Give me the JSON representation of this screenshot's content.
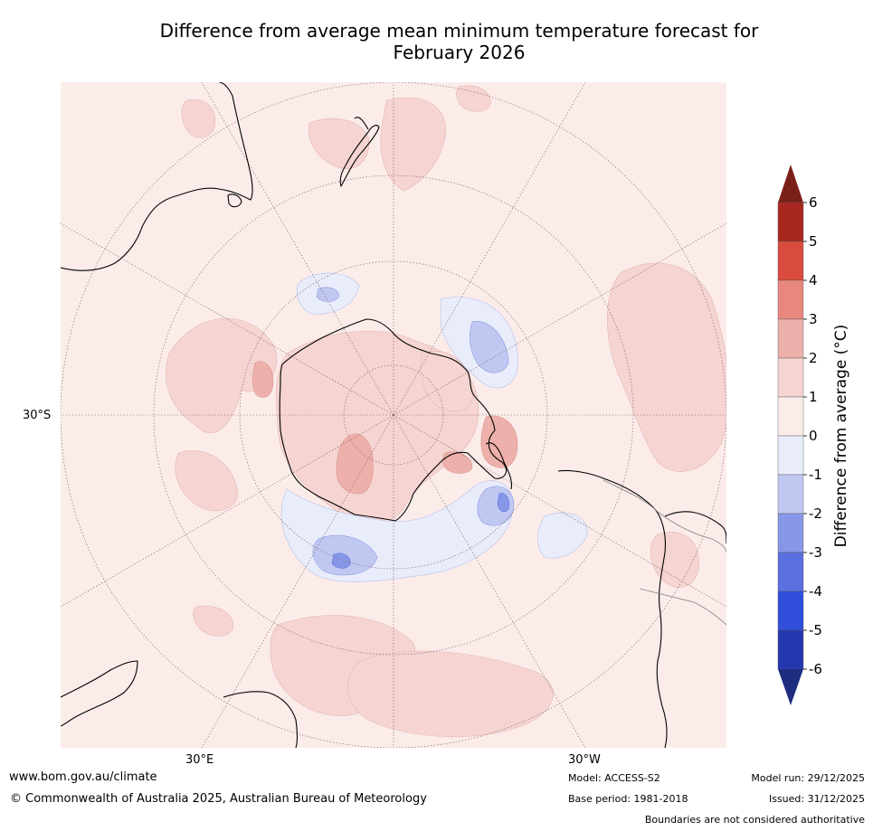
{
  "title": {
    "line1": "Difference from average mean minimum temperature forecast for",
    "line2": "February 2026"
  },
  "map": {
    "lat_label": "30°S",
    "lon_labels": [
      "30°E",
      "30°W"
    ]
  },
  "colorbar": {
    "label": "Difference from average (°C)",
    "ticks": [
      "6",
      "5",
      "4",
      "3",
      "2",
      "1",
      "0",
      "-1",
      "-2",
      "-3",
      "-4",
      "-5",
      "-6"
    ],
    "colors": {
      "above_6": "#7b1f1a",
      "5_6": "#a8281f",
      "4_5": "#d94b3d",
      "3_4": "#e8877d",
      "2_3": "#eeb0aa",
      "1_2": "#f5d4d1",
      "0_1": "#fbecea",
      "m1_0": "#e9ecfa",
      "m2_m1": "#c0c8f2",
      "m3_m2": "#8797e8",
      "m4_m3": "#5a70e0",
      "m5_m4": "#2f4fdc",
      "m6_m5": "#2438b0",
      "below_m6": "#1e2d80"
    }
  },
  "footer": {
    "website": "www.bom.gov.au/climate",
    "copyright": "© Commonwealth of Australia 2025, Australian Bureau of Meteorology",
    "model": "Model: ACCESS-S2",
    "base_period": "Base period: 1981-2018",
    "model_run": "Model run: 29/12/2025",
    "issued": "Issued: 31/12/2025",
    "disclaimer": "Boundaries are not considered authoritative"
  }
}
